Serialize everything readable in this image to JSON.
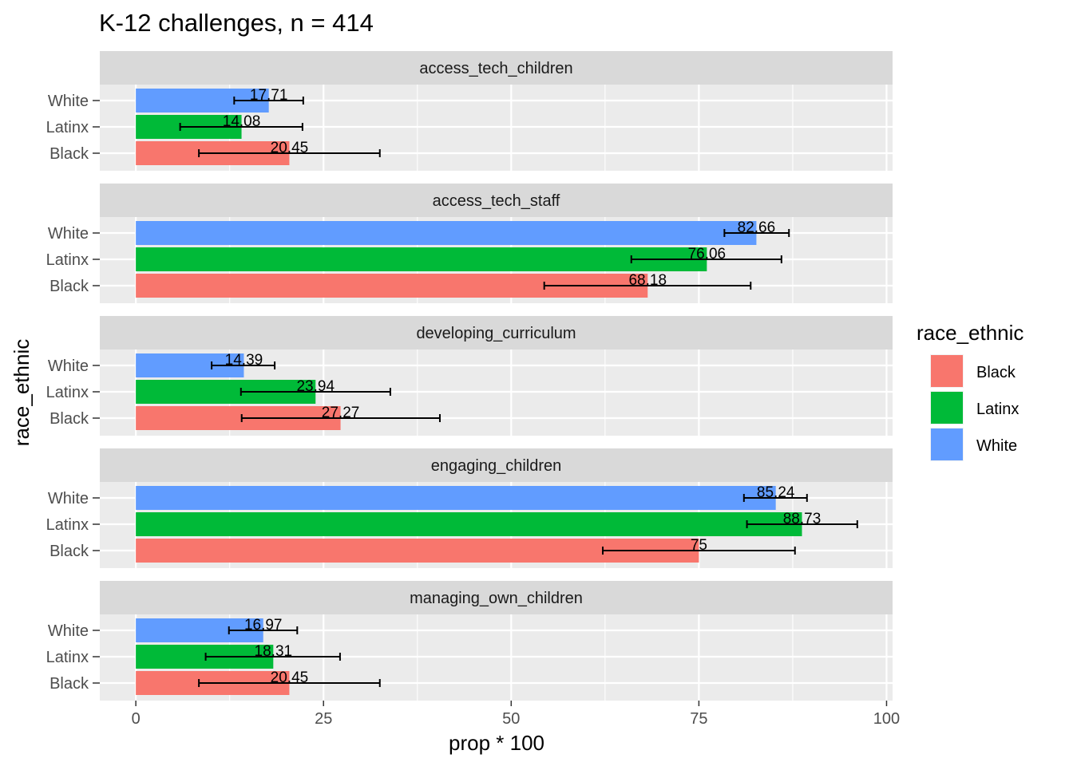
{
  "chart_data": {
    "type": "bar",
    "orientation": "horizontal",
    "title": "K-12 challenges, n = 414",
    "xlabel": "prop * 100",
    "ylabel": "race_ethnic",
    "xlim": [
      -4.8,
      100.8
    ],
    "xticks": [
      0,
      25,
      50,
      75,
      100
    ],
    "categories": [
      "Black",
      "Latinx",
      "White"
    ],
    "grid": true,
    "legend": {
      "title": "race_ethnic",
      "position": "right",
      "entries": [
        {
          "label": "Black",
          "color": "#F8766D"
        },
        {
          "label": "Latinx",
          "color": "#00BA38"
        },
        {
          "label": "White",
          "color": "#619CFF"
        }
      ]
    },
    "panels": [
      {
        "name": "access_tech_children",
        "bars": [
          {
            "group": "White",
            "value": 17.71,
            "label": "17.71",
            "err_low": 13.1,
            "err_high": 22.3
          },
          {
            "group": "Latinx",
            "value": 14.08,
            "label": "14.08",
            "err_low": 5.9,
            "err_high": 22.2
          },
          {
            "group": "Black",
            "value": 20.45,
            "label": "20.45",
            "err_low": 8.4,
            "err_high": 32.5
          }
        ]
      },
      {
        "name": "access_tech_staff",
        "bars": [
          {
            "group": "White",
            "value": 82.66,
            "label": "82.66",
            "err_low": 78.4,
            "err_high": 87.0
          },
          {
            "group": "Latinx",
            "value": 76.06,
            "label": "76.06",
            "err_low": 66.0,
            "err_high": 86.0
          },
          {
            "group": "Black",
            "value": 68.18,
            "label": "68.18",
            "err_low": 54.4,
            "err_high": 81.9
          }
        ]
      },
      {
        "name": "developing_curriculum",
        "bars": [
          {
            "group": "White",
            "value": 14.39,
            "label": "14.39",
            "err_low": 10.1,
            "err_high": 18.5
          },
          {
            "group": "Latinx",
            "value": 23.94,
            "label": "23.94",
            "err_low": 14.0,
            "err_high": 33.9
          },
          {
            "group": "Black",
            "value": 27.27,
            "label": "27.27",
            "err_low": 14.1,
            "err_high": 40.5
          }
        ]
      },
      {
        "name": "engaging_children",
        "bars": [
          {
            "group": "White",
            "value": 85.24,
            "label": "85.24",
            "err_low": 81.0,
            "err_high": 89.4
          },
          {
            "group": "Latinx",
            "value": 88.73,
            "label": "88.73",
            "err_low": 81.4,
            "err_high": 96.1
          },
          {
            "group": "Black",
            "value": 75,
            "label": "75",
            "err_low": 62.2,
            "err_high": 87.8
          }
        ]
      },
      {
        "name": "managing_own_children",
        "bars": [
          {
            "group": "White",
            "value": 16.97,
            "label": "16.97",
            "err_low": 12.4,
            "err_high": 21.5
          },
          {
            "group": "Latinx",
            "value": 18.31,
            "label": "18.31",
            "err_low": 9.3,
            "err_high": 27.2
          },
          {
            "group": "Black",
            "value": 20.45,
            "label": "20.45",
            "err_low": 8.4,
            "err_high": 32.5
          }
        ]
      }
    ]
  }
}
